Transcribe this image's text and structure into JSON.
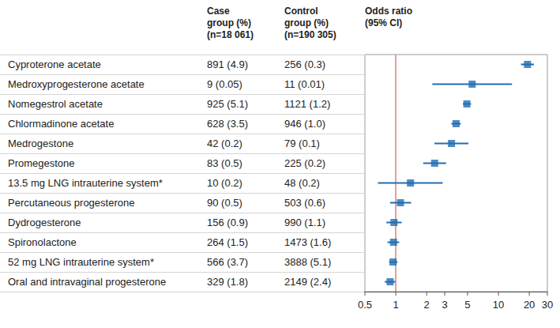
{
  "chart_data": {
    "type": "forest",
    "column_titles": {
      "case": [
        "Case",
        "group (%)",
        "(n=18 061)"
      ],
      "control": [
        "Control",
        "group (%)",
        "(n=190 305)"
      ],
      "odds_ratio": [
        "Odds ratio",
        "(95% CI)"
      ]
    },
    "categories": [
      "Cyproterone acetate",
      "Medroxyprogesterone acetate",
      "Nomegestrol acetate",
      "Chlormadinone acetate",
      "Medrogestone",
      "Promegestone",
      "13.5 mg LNG intrauterine system*",
      "Percutaneous progesterone",
      "Dydrogesterone",
      "Spironolactone",
      "52 mg LNG intrauterine system*",
      "Oral and intravaginal progesterone"
    ],
    "case_group": [
      "891 (4.9)",
      "9 (0.05)",
      "925 (5.1)",
      "628 (3.5)",
      "42 (0.2)",
      "83 (0.5)",
      "10 (0.2)",
      "90 (0.5)",
      "156 (0.9)",
      "264 (1.5)",
      "566 (3.7)",
      "329 (1.8)"
    ],
    "control_group": [
      "256 (0.3)",
      "11 (0.01)",
      "1121 (1.2)",
      "946 (1.0)",
      "79 (0.1)",
      "225 (0.2)",
      "48 (0.2)",
      "503 (0.6)",
      "990 (1.1)",
      "1473 (1.6)",
      "3888 (5.1)",
      "2149 (2.4)"
    ],
    "values": [
      19.21,
      5.55,
      4.93,
      3.87,
      3.49,
      2.39,
      1.39,
      1.11,
      0.96,
      0.95,
      0.94,
      0.88
    ],
    "ci_lower": [
      16.61,
      2.27,
      4.5,
      3.48,
      2.38,
      1.85,
      0.67,
      0.88,
      0.81,
      0.83,
      0.86,
      0.78
    ],
    "ci_upper": [
      22.22,
      13.56,
      5.41,
      4.3,
      5.1,
      3.09,
      2.86,
      1.41,
      1.14,
      1.08,
      1.04,
      0.99
    ],
    "reference_line": 1,
    "xlim": [
      0.5,
      30
    ],
    "xticks": [
      0.5,
      1,
      2,
      3,
      5,
      10,
      20,
      30
    ],
    "log": "x",
    "grid": false,
    "color": "#1f6db3",
    "marker": "square"
  }
}
